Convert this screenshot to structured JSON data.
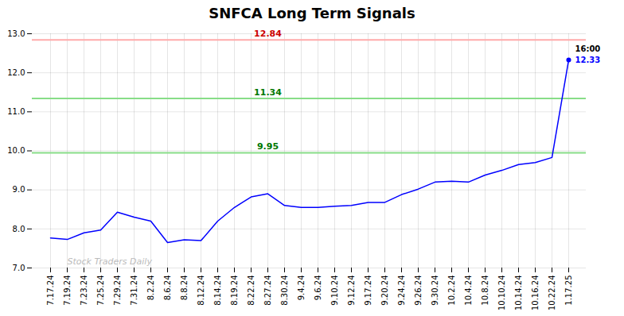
{
  "chart_data": {
    "type": "line",
    "title": "SNFCA Long Term Signals",
    "categories": [
      "7.17.24",
      "7.19.24",
      "7.23.24",
      "7.25.24",
      "7.29.24",
      "7.31.24",
      "8.2.24",
      "8.6.24",
      "8.8.24",
      "8.12.24",
      "8.14.24",
      "8.19.24",
      "8.22.24",
      "8.27.24",
      "8.30.24",
      "9.4.24",
      "9.6.24",
      "9.10.24",
      "9.12.24",
      "9.17.24",
      "9.20.24",
      "9.24.24",
      "9.26.24",
      "9.30.24",
      "10.2.24",
      "10.4.24",
      "10.8.24",
      "10.10.24",
      "10.14.24",
      "10.16.24",
      "10.22.24",
      "1.17.25"
    ],
    "values": [
      7.77,
      7.73,
      7.9,
      7.97,
      8.43,
      8.3,
      8.2,
      7.65,
      7.72,
      7.7,
      8.2,
      8.55,
      8.82,
      8.9,
      8.6,
      8.55,
      8.55,
      8.58,
      8.6,
      8.68,
      8.68,
      8.88,
      9.02,
      9.2,
      9.22,
      9.2,
      9.38,
      9.5,
      9.65,
      9.7,
      9.83,
      12.33
    ],
    "color": "blue",
    "ylim": [
      7,
      13
    ],
    "yticks": [
      7,
      8,
      9,
      10,
      11,
      12,
      13
    ],
    "grid": true,
    "hlines": [
      {
        "y": 12.84,
        "label": "12.84",
        "color": "#ffaaaa",
        "label_color": "#cc0000"
      },
      {
        "y": 11.34,
        "label": "11.34",
        "color": "#88dd88",
        "label_color": "#007700"
      },
      {
        "y": 9.95,
        "label": "9.95",
        "color": "#88dd88",
        "label_color": "#007700"
      }
    ],
    "annotations": [
      {
        "text": "16:00",
        "color": "black"
      },
      {
        "text": "12.33",
        "color": "blue"
      }
    ],
    "watermark": {
      "text": "Stock Traders Daily",
      "color": "#bbbbbb"
    }
  }
}
